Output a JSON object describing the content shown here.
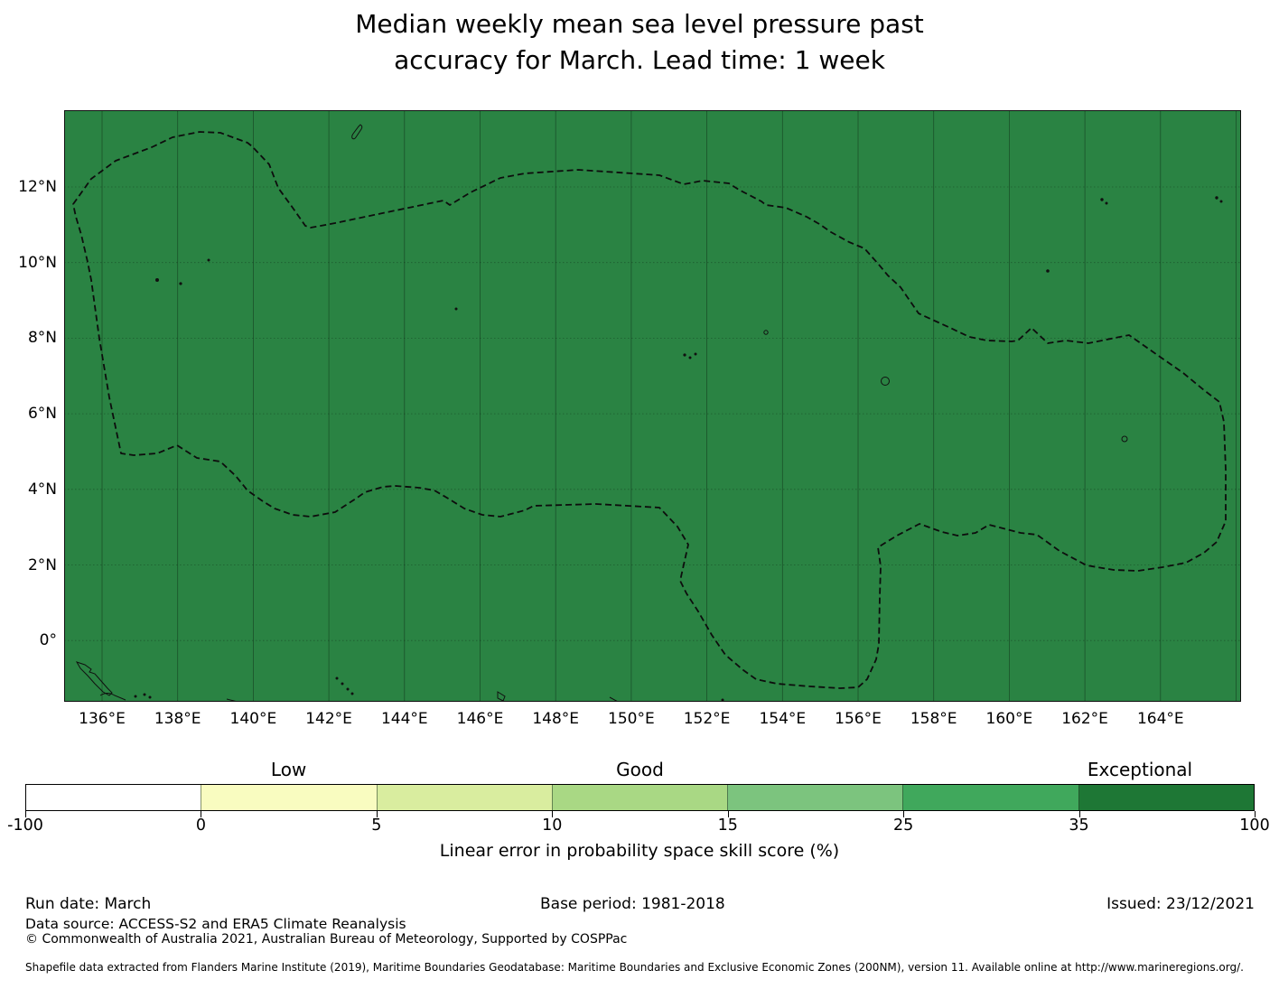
{
  "title": {
    "line1": "Median weekly mean sea level pressure past",
    "line2": "accuracy for March. Lead time: 1 week"
  },
  "map": {
    "fill_color": "#2a8343",
    "x_tick_labels": [
      "136°E",
      "138°E",
      "140°E",
      "142°E",
      "144°E",
      "146°E",
      "148°E",
      "150°E",
      "152°E",
      "154°E",
      "156°E",
      "158°E",
      "160°E",
      "162°E",
      "164°E"
    ],
    "y_tick_labels": [
      "12°N",
      "10°N",
      "8°N",
      "6°N",
      "4°N",
      "2°N",
      "0°"
    ]
  },
  "colorbar": {
    "category_labels": [
      "Low",
      "Good",
      "Exceptional"
    ],
    "tick_labels": [
      "-100",
      "0",
      "5",
      "10",
      "15",
      "25",
      "35",
      "100"
    ],
    "segment_colors": [
      "#ffffff",
      "#f9fcc0",
      "#d9ed9f",
      "#a9d884",
      "#7cc47e",
      "#40a85c",
      "#1e7735"
    ],
    "axis_label": "Linear error in probability space skill score (%)"
  },
  "footer": {
    "run_date": "Run date: March",
    "base_period": "Base period: 1981-2018",
    "issued": "Issued: 23/12/2021",
    "data_source": "Data source: ACCESS-S2 and ERA5 Climate Reanalysis",
    "copyright": "© Commonwealth of Australia 2021, Australian Bureau of Meteorology, Supported by COSPPac",
    "shapefile": "Shapefile data extracted from Flanders Marine Institute (2019), Maritime Boundaries Geodatabase: Maritime Boundaries and Exclusive Economic Zones (200NM), version 11. Available online at http://www.marineregions.org/."
  },
  "chart_data": {
    "type": "heatmap",
    "subtype": "geographic-skill-map",
    "title": "Median weekly mean sea level pressure past accuracy for March. Lead time: 1 week",
    "projection": "equirectangular",
    "extent": {
      "lon_min_e": 135.0,
      "lon_max_e": 166.2,
      "lat_min_n": -1.6,
      "lat_max_n": 14.0
    },
    "x_ticks_e": [
      136,
      138,
      140,
      142,
      144,
      146,
      148,
      150,
      152,
      154,
      156,
      158,
      160,
      162,
      164
    ],
    "y_ticks_n": [
      12,
      10,
      8,
      6,
      4,
      2,
      0
    ],
    "grid": true,
    "fill_value_class": "35 to 100 (Exceptional)",
    "fill_color": "#2a8343",
    "colorbar": {
      "label": "Linear error in probability space skill score (%)",
      "boundaries": [
        -100,
        0,
        5,
        10,
        15,
        25,
        35,
        100
      ],
      "segment_colors": [
        "#ffffff",
        "#f9fcc0",
        "#d9ed9f",
        "#a9d884",
        "#7cc47e",
        "#40a85c",
        "#1e7735"
      ],
      "categories": [
        {
          "label": "Low",
          "over_segment": "0-5"
        },
        {
          "label": "Good",
          "over_segment": "10-15"
        },
        {
          "label": "Exceptional",
          "over_segment": "35-100"
        }
      ],
      "orientation": "horizontal"
    },
    "overlays": [
      "dashed EEZ maritime boundary",
      "island coastlines"
    ]
  }
}
